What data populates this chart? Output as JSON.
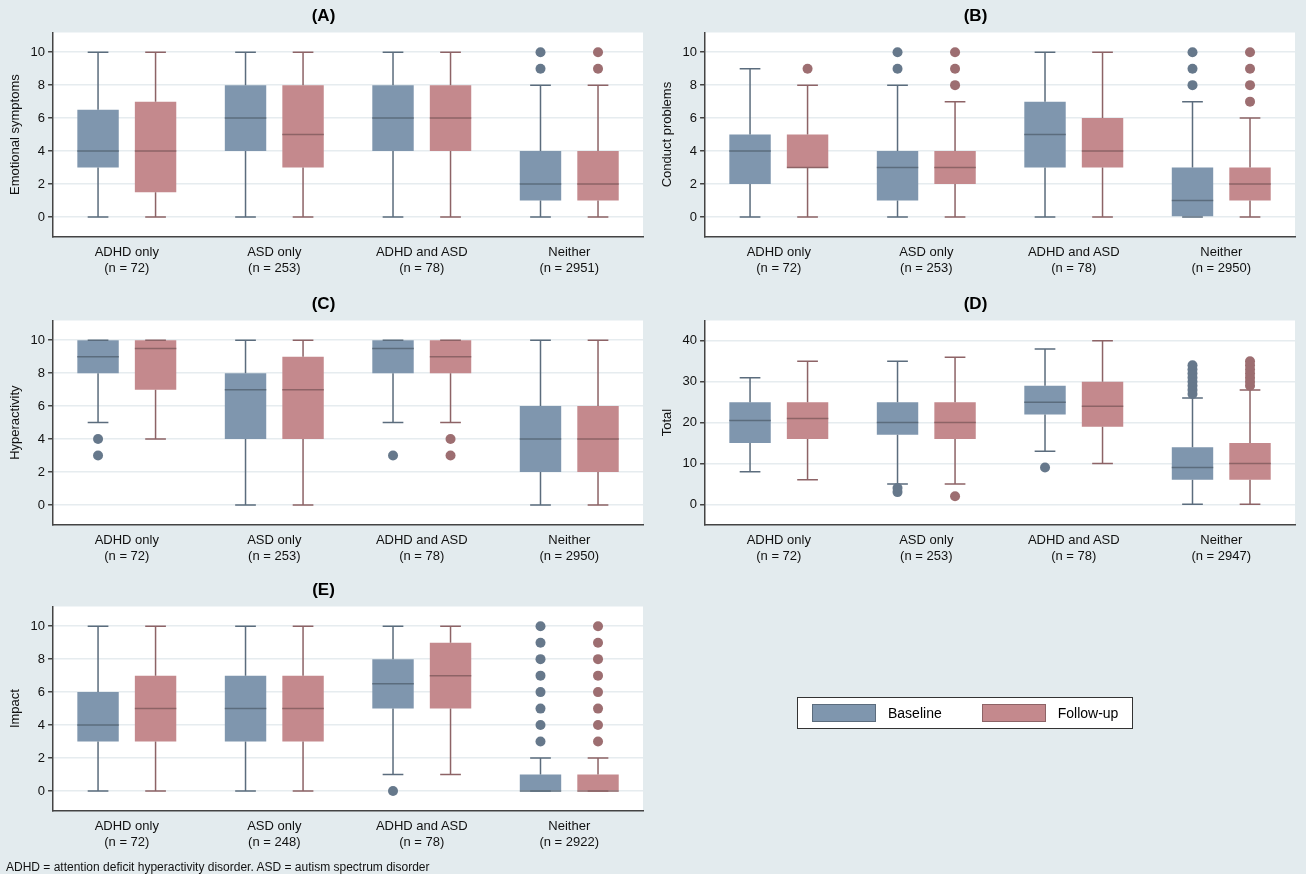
{
  "chart_data": [
    {
      "type": "box",
      "title": "(A)",
      "ylabel": "Emotional symptoms",
      "categories": [
        "ADHD only\n(n = 72)",
        "ASD only\n(n = 253)",
        "ADHD and ASD\n(n = 78)",
        "Neither\n(n = 2951)"
      ],
      "ylim": [
        -1.2,
        11.2
      ],
      "yticks": [
        0,
        2,
        4,
        6,
        8,
        10
      ],
      "grid": "y",
      "series": [
        {
          "color": "#7f96ae",
          "boxes": [
            {
              "low": 0,
              "q1": 3,
              "median": 4,
              "q3": 6.5,
              "high": 10
            },
            {
              "low": 0,
              "q1": 4,
              "median": 6,
              "q3": 8,
              "high": 10
            },
            {
              "low": 0,
              "q1": 4,
              "median": 6,
              "q3": 8,
              "high": 10
            },
            {
              "low": 0,
              "q1": 1,
              "median": 2,
              "q3": 4,
              "high": 8,
              "outliers": [
                9,
                10
              ]
            }
          ]
        },
        {
          "color": "#c4898d",
          "boxes": [
            {
              "low": 0,
              "q1": 1.5,
              "median": 4,
              "q3": 7,
              "high": 10
            },
            {
              "low": 0,
              "q1": 3,
              "median": 5,
              "q3": 8,
              "high": 10
            },
            {
              "low": 0,
              "q1": 4,
              "median": 6,
              "q3": 8,
              "high": 10
            },
            {
              "low": 0,
              "q1": 1,
              "median": 2,
              "q3": 4,
              "high": 8,
              "outliers": [
                9,
                10
              ]
            }
          ]
        }
      ]
    },
    {
      "type": "box",
      "title": "(B)",
      "ylabel": "Conduct problems",
      "categories": [
        "ADHD only\n(n = 72)",
        "ASD only\n(n = 253)",
        "ADHD and ASD\n(n = 78)",
        "Neither\n(n = 2950)"
      ],
      "ylim": [
        -1.2,
        11.2
      ],
      "yticks": [
        0,
        2,
        4,
        6,
        8,
        10
      ],
      "grid": "y",
      "series": [
        {
          "color": "#7f96ae",
          "boxes": [
            {
              "low": 0,
              "q1": 2,
              "median": 4,
              "q3": 5,
              "high": 9
            },
            {
              "low": 0,
              "q1": 1,
              "median": 3,
              "q3": 4,
              "high": 8,
              "outliers": [
                9,
                10
              ]
            },
            {
              "low": 0,
              "q1": 3,
              "median": 5,
              "q3": 7,
              "high": 10
            },
            {
              "low": 0,
              "q1": 0,
              "median": 1,
              "q3": 3,
              "high": 7,
              "outliers": [
                8,
                9,
                10
              ]
            }
          ]
        },
        {
          "color": "#c4898d",
          "boxes": [
            {
              "low": 0,
              "q1": 3,
              "median": 3,
              "q3": 5,
              "high": 8,
              "outliers": [
                9
              ]
            },
            {
              "low": 0,
              "q1": 2,
              "median": 3,
              "q3": 4,
              "high": 7,
              "outliers": [
                8,
                9,
                10
              ]
            },
            {
              "low": 0,
              "q1": 3,
              "median": 4,
              "q3": 6,
              "high": 10
            },
            {
              "low": 0,
              "q1": 1,
              "median": 2,
              "q3": 3,
              "high": 6,
              "outliers": [
                7,
                8,
                9,
                10
              ]
            }
          ]
        }
      ]
    },
    {
      "type": "box",
      "title": "(C)",
      "ylabel": "Hyperactivity",
      "categories": [
        "ADHD only\n(n = 72)",
        "ASD only\n(n = 253)",
        "ADHD and ASD\n(n = 78)",
        "Neither\n(n = 2950)"
      ],
      "ylim": [
        -1.2,
        11.2
      ],
      "yticks": [
        0,
        2,
        4,
        6,
        8,
        10
      ],
      "grid": "y",
      "series": [
        {
          "color": "#7f96ae",
          "boxes": [
            {
              "low": 5,
              "q1": 8,
              "median": 9,
              "q3": 10,
              "high": 10,
              "outliers": [
                3,
                4
              ]
            },
            {
              "low": 0,
              "q1": 4,
              "median": 7,
              "q3": 8,
              "high": 10
            },
            {
              "low": 5,
              "q1": 8,
              "median": 9.5,
              "q3": 10,
              "high": 10,
              "outliers": [
                3
              ]
            },
            {
              "low": 0,
              "q1": 2,
              "median": 4,
              "q3": 6,
              "high": 10
            }
          ]
        },
        {
          "color": "#c4898d",
          "boxes": [
            {
              "low": 4,
              "q1": 7,
              "median": 9.5,
              "q3": 10,
              "high": 10
            },
            {
              "low": 0,
              "q1": 4,
              "median": 7,
              "q3": 9,
              "high": 10
            },
            {
              "low": 5,
              "q1": 8,
              "median": 9,
              "q3": 10,
              "high": 10,
              "outliers": [
                3,
                4
              ]
            },
            {
              "low": 0,
              "q1": 2,
              "median": 4,
              "q3": 6,
              "high": 10
            }
          ]
        }
      ]
    },
    {
      "type": "box",
      "title": "(D)",
      "ylabel": "Total",
      "categories": [
        "ADHD only\n(n = 72)",
        "ASD only\n(n = 253)",
        "ADHD and ASD\n(n = 78)",
        "Neither\n(n = 2947)"
      ],
      "ylim": [
        -5,
        45
      ],
      "yticks": [
        0,
        10,
        20,
        30,
        40
      ],
      "grid": "y",
      "series": [
        {
          "color": "#7f96ae",
          "boxes": [
            {
              "low": 8,
              "q1": 15,
              "median": 20.5,
              "q3": 25,
              "high": 31
            },
            {
              "low": 5,
              "q1": 17,
              "median": 20,
              "q3": 25,
              "high": 35,
              "outliers": [
                3,
                4
              ]
            },
            {
              "low": 13,
              "q1": 22,
              "median": 25,
              "q3": 29,
              "high": 38,
              "outliers": [
                9
              ]
            },
            {
              "low": 0,
              "q1": 6,
              "median": 9,
              "q3": 14,
              "high": 26,
              "outliers": [
                27,
                28,
                29,
                30,
                31,
                32,
                33,
                34
              ]
            }
          ]
        },
        {
          "color": "#c4898d",
          "boxes": [
            {
              "low": 6,
              "q1": 16,
              "median": 21,
              "q3": 25,
              "high": 35
            },
            {
              "low": 5,
              "q1": 16,
              "median": 20,
              "q3": 25,
              "high": 36,
              "outliers": [
                2
              ]
            },
            {
              "low": 10,
              "q1": 19,
              "median": 24,
              "q3": 30,
              "high": 40
            },
            {
              "low": 0,
              "q1": 6,
              "median": 10,
              "q3": 15,
              "high": 28,
              "outliers": [
                29,
                30,
                31,
                32,
                33,
                34,
                35
              ]
            }
          ]
        }
      ]
    },
    {
      "type": "box",
      "title": "(E)",
      "ylabel": "Impact",
      "categories": [
        "ADHD only\n(n = 72)",
        "ASD only\n(n = 248)",
        "ADHD and ASD\n(n = 78)",
        "Neither\n(n = 2922)"
      ],
      "ylim": [
        -1.2,
        11.2
      ],
      "yticks": [
        0,
        2,
        4,
        6,
        8,
        10
      ],
      "grid": "y",
      "legend": "right",
      "annotations": [
        "ADHD = attention deficit hyperactivity disorder. ASD = autism spectrum disorder"
      ],
      "series": [
        {
          "name": "Baseline",
          "color": "#7f96ae",
          "boxes": [
            {
              "low": 0,
              "q1": 3,
              "median": 4,
              "q3": 6,
              "high": 10
            },
            {
              "low": 0,
              "q1": 3,
              "median": 5,
              "q3": 7,
              "high": 10
            },
            {
              "low": 1,
              "q1": 5,
              "median": 6.5,
              "q3": 8,
              "high": 10,
              "outliers": [
                0
              ]
            },
            {
              "low": 0,
              "q1": 0,
              "median": 0,
              "q3": 1,
              "high": 2,
              "outliers": [
                3,
                4,
                5,
                6,
                7,
                8,
                9,
                10
              ]
            }
          ]
        },
        {
          "name": "Follow-up",
          "color": "#c4898d",
          "boxes": [
            {
              "low": 0,
              "q1": 3,
              "median": 5,
              "q3": 7,
              "high": 10
            },
            {
              "low": 0,
              "q1": 3,
              "median": 5,
              "q3": 7,
              "high": 10
            },
            {
              "low": 1,
              "q1": 5,
              "median": 7,
              "q3": 9,
              "high": 10
            },
            {
              "low": 0,
              "q1": 0,
              "median": 0,
              "q3": 1,
              "high": 2,
              "outliers": [
                3,
                4,
                5,
                6,
                7,
                8,
                9,
                10
              ]
            }
          ]
        }
      ]
    }
  ]
}
